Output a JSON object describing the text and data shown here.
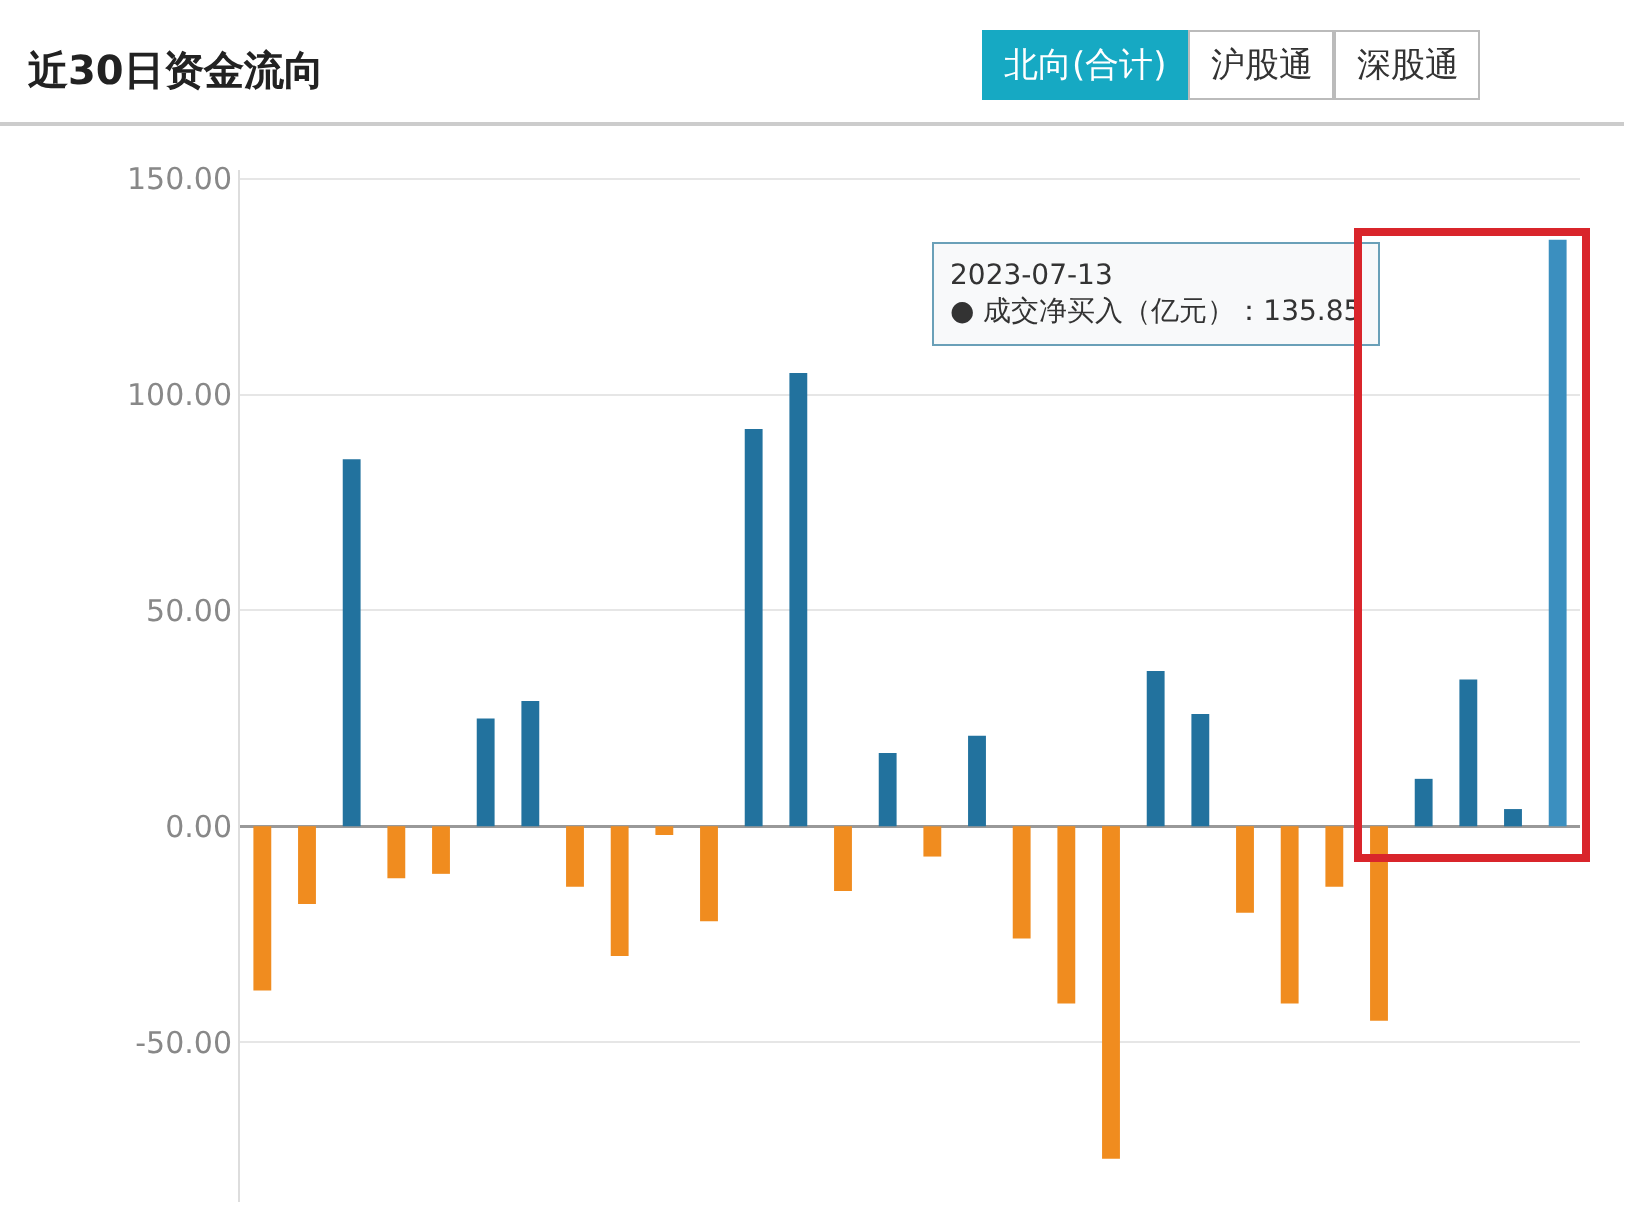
{
  "chart_data": {
    "type": "bar",
    "title": "近30日资金流向",
    "categories": [
      null,
      null,
      null,
      null,
      null,
      null,
      null,
      null,
      null,
      null,
      null,
      null,
      null,
      null,
      null,
      null,
      null,
      null,
      null,
      null,
      null,
      null,
      null,
      null,
      null,
      null,
      null,
      null,
      null,
      null
    ],
    "values": [
      -38,
      -18,
      85,
      -12,
      -11,
      25,
      29,
      -14,
      -30,
      -2,
      -22,
      92,
      105,
      -15,
      17,
      -7,
      21,
      -26,
      -41,
      -77,
      36,
      26,
      -20,
      -41,
      -14,
      -45,
      11,
      34,
      4,
      135.85
    ],
    "colors": [
      "#f08c1f",
      "#f08c1f",
      "#22729e",
      "#f08c1f",
      "#f08c1f",
      "#22729e",
      "#22729e",
      "#f08c1f",
      "#f08c1f",
      "#f08c1f",
      "#f08c1f",
      "#22729e",
      "#22729e",
      "#f08c1f",
      "#22729e",
      "#f08c1f",
      "#22729e",
      "#f08c1f",
      "#f08c1f",
      "#f08c1f",
      "#22729e",
      "#22729e",
      "#f08c1f",
      "#f08c1f",
      "#f08c1f",
      "#f08c1f",
      "#22729e",
      "#22729e",
      "#22729e",
      "#3b8fbf"
    ],
    "ylim": [
      -87,
      152
    ],
    "yticks": [
      {
        "value": -50,
        "label": "-50.00"
      },
      {
        "value": 0,
        "label": "0.00"
      },
      {
        "value": 50,
        "label": "50.00"
      },
      {
        "value": 100,
        "label": "100.00"
      },
      {
        "value": 150,
        "label": "150.00"
      }
    ],
    "grid": "y",
    "annotations": [
      "北向(合计)",
      "沪股通",
      "深股通",
      "2023-07-13\n● 成交净买入（亿元）：135.85"
    ]
  }
}
